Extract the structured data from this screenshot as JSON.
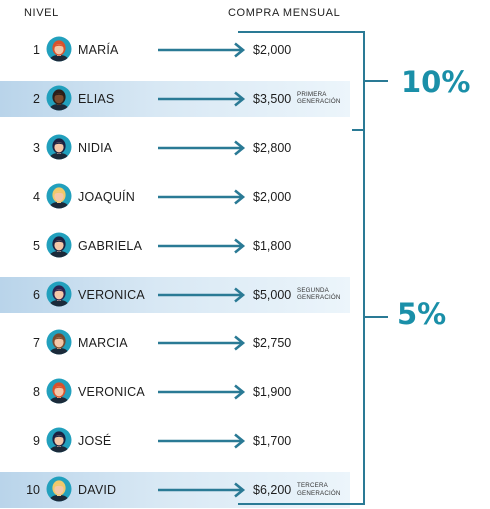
{
  "headers": {
    "level": "NIVEL",
    "monthly_purchase": "COMPRA MENSUAL"
  },
  "rows": [
    {
      "level": "1",
      "name": "MARÍA",
      "amount": "$2,000",
      "generation": "",
      "hair": "#d9522c",
      "shirt": "#1b2a3a"
    },
    {
      "level": "2",
      "name": "ELIAS",
      "amount": "$3,500",
      "generation": "PRIMERA GENERACIÓN",
      "hair": "#2b1f1a",
      "shirt": "#1b2a3a"
    },
    {
      "level": "3",
      "name": "NIDIA",
      "amount": "$2,800",
      "generation": "",
      "hair": "#1c2242",
      "shirt": "#1b2a3a"
    },
    {
      "level": "4",
      "name": "JOAQUÍN",
      "amount": "$2,000",
      "generation": "",
      "hair": "#f0c96a",
      "shirt": "#1b2a3a"
    },
    {
      "level": "5",
      "name": "GABRIELA",
      "amount": "$1,800",
      "generation": "",
      "hair": "#1c2242",
      "shirt": "#1b2a3a"
    },
    {
      "level": "6",
      "name": "VERONICA",
      "amount": "$5,000",
      "generation": "SEGUNDA GENERACIÓN",
      "hair": "#2a2350",
      "shirt": "#1b2a3a"
    },
    {
      "level": "7",
      "name": "MARCIA",
      "amount": "$2,750",
      "generation": "",
      "hair": "#7a4a2e",
      "shirt": "#1b2a3a"
    },
    {
      "level": "8",
      "name": "VERONICA",
      "amount": "$1,900",
      "generation": "",
      "hair": "#d9522c",
      "shirt": "#1b2a3a"
    },
    {
      "level": "9",
      "name": "JOSÉ",
      "amount": "$1,700",
      "generation": "",
      "hair": "#1c2242",
      "shirt": "#1b2a3a"
    },
    {
      "level": "10",
      "name": "DAVID",
      "amount": "$6,200",
      "generation": "TERCERA GENERACIÓN",
      "hair": "#f0c96a",
      "shirt": "#1b2a3a"
    }
  ],
  "highlighted_rows": [
    "2",
    "6",
    "10"
  ],
  "commission_groups": [
    {
      "label": "10%",
      "levels": "1-2"
    },
    {
      "label": "5%",
      "levels": "3-10"
    }
  ],
  "colors": {
    "accent": "#1a8fa8",
    "arrow": "#2a7a95",
    "bracket": "#2a7a95",
    "highlight_band": "#cfe2f1",
    "avatar_bg": "#22a0bd",
    "skin": "#f4c7a8",
    "skin_dark": "#7a4b2e"
  }
}
